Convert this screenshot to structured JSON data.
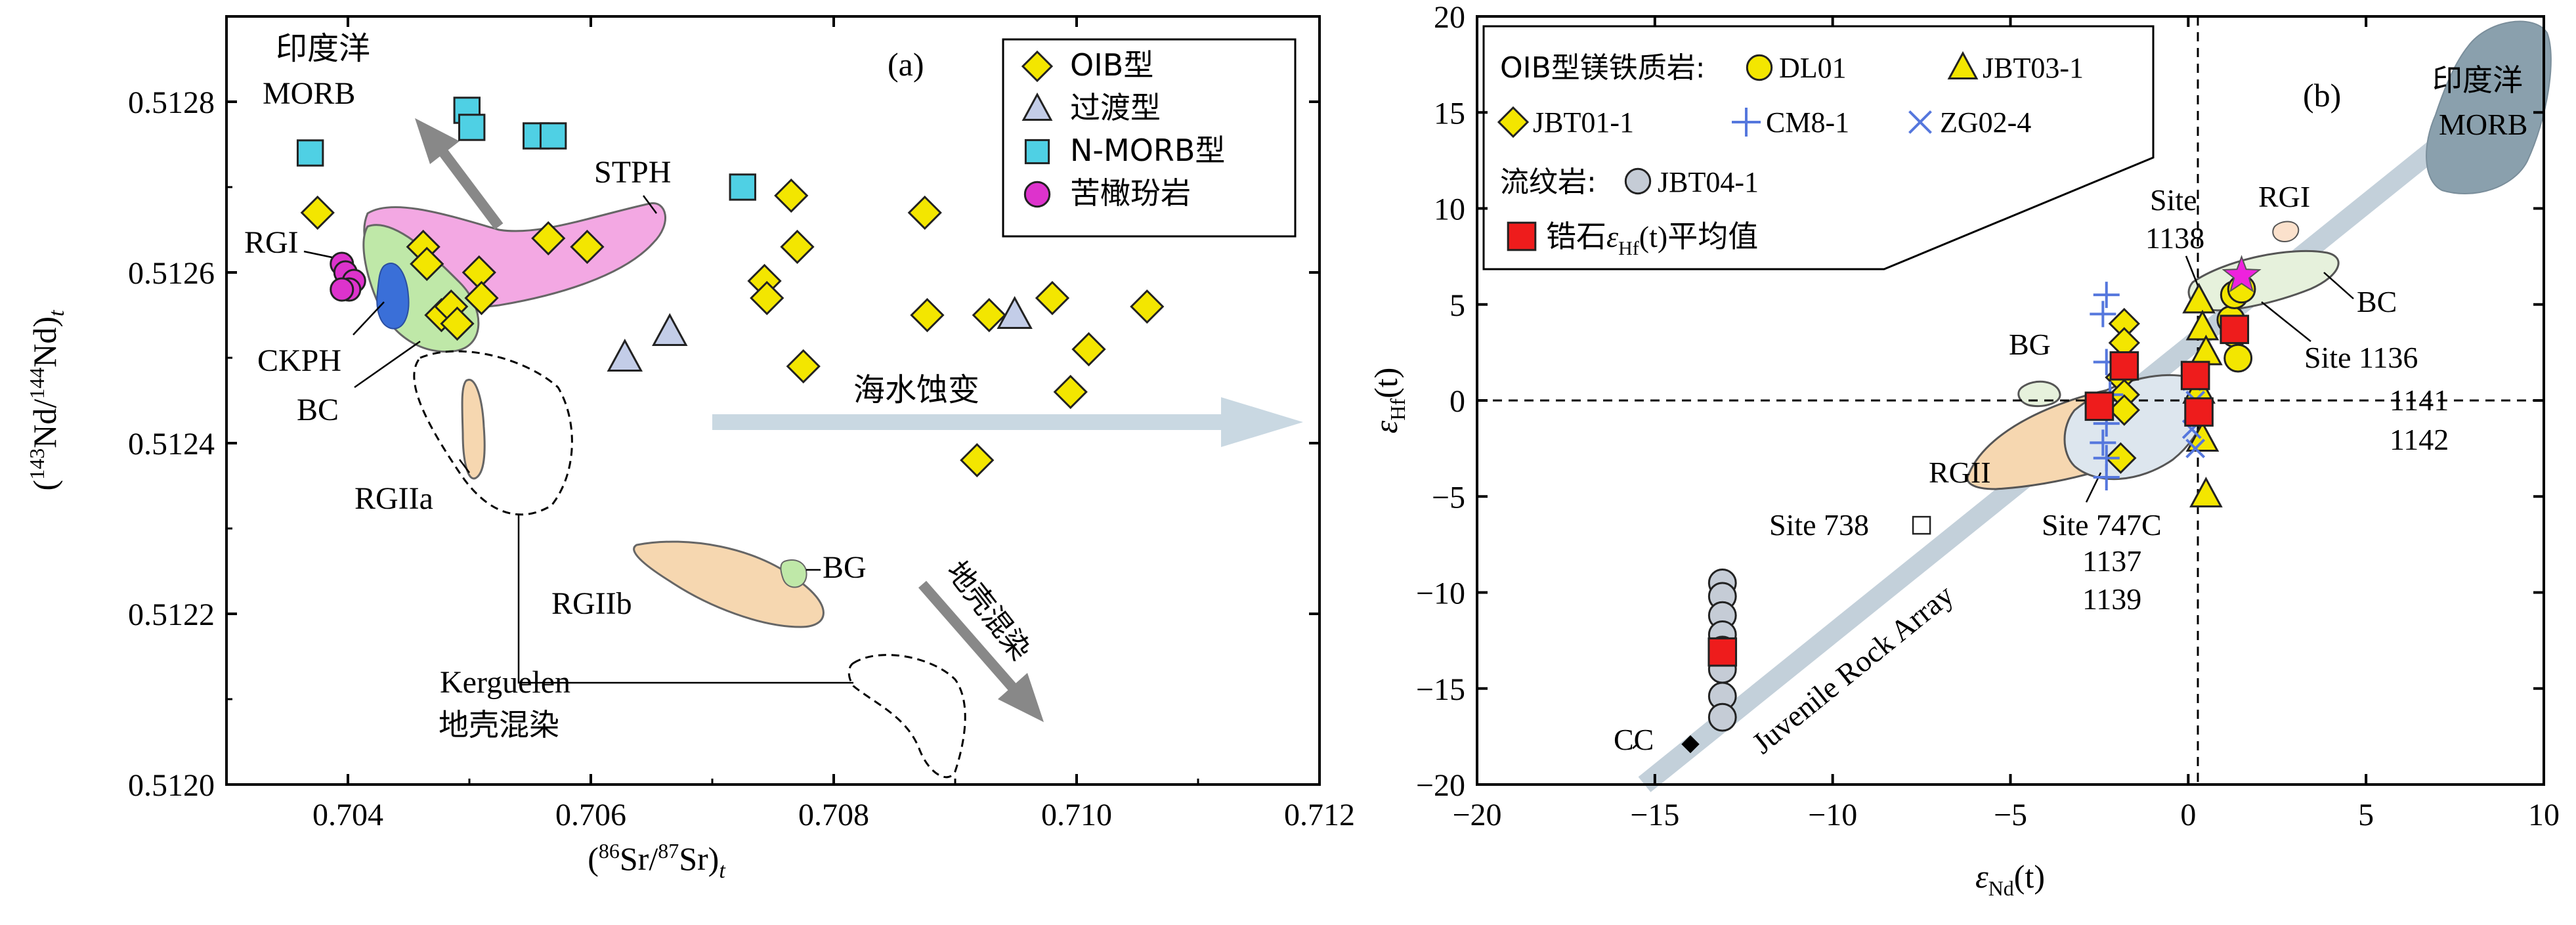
{
  "chart_data": [
    {
      "panel": "a",
      "type": "scatter",
      "panel_label": "(a)",
      "xlabel_parts": [
        "(",
        "86",
        "Sr/",
        "87",
        "Sr)",
        "t"
      ],
      "ylabel_parts": [
        "(",
        "143",
        "Nd/",
        "144",
        "Nd)",
        "t"
      ],
      "xlim": [
        0.703,
        0.712
      ],
      "ylim": [
        0.512,
        0.5129
      ],
      "xticks": [
        0.704,
        0.706,
        0.708,
        0.71,
        0.712
      ],
      "xtick_labels": [
        "0.704",
        "0.706",
        "0.708",
        "0.710",
        "0.712"
      ],
      "yticks": [
        0.512,
        0.5122,
        0.5124,
        0.5126,
        0.5128
      ],
      "ytick_labels": [
        "0.5120",
        "0.5122",
        "0.5124",
        "0.5126",
        "0.5128"
      ],
      "legend": [
        {
          "label": "OIB型",
          "marker": "diamond",
          "color": "#f3e600"
        },
        {
          "label": "过渡型",
          "marker": "triangle",
          "color": "#c3cde8"
        },
        {
          "label": "N-MORB型",
          "marker": "square",
          "color": "#4fd0e4"
        },
        {
          "label": "苦橄玢岩",
          "marker": "circle",
          "color": "#dd33cc"
        }
      ],
      "series": [
        {
          "name": "OIB型",
          "marker": "diamond",
          "color": "#f3e600",
          "x": [
            0.70375,
            0.70462,
            0.70465,
            0.70477,
            0.70485,
            0.7049,
            0.70508,
            0.7051,
            0.70565,
            0.70597,
            0.70743,
            0.70745,
            0.70765,
            0.7077,
            0.70775,
            0.70875,
            0.70877,
            0.70918,
            0.70928,
            0.7098,
            0.70995,
            0.7101,
            0.71058
          ],
          "y": [
            0.51267,
            0.51263,
            0.51261,
            0.51255,
            0.51256,
            0.51254,
            0.5126,
            0.51257,
            0.51264,
            0.51263,
            0.51259,
            0.51257,
            0.51269,
            0.51263,
            0.51249,
            0.51267,
            0.51255,
            0.51238,
            0.51255,
            0.51257,
            0.51246,
            0.51251,
            0.51256
          ]
        },
        {
          "name": "过渡型",
          "marker": "triangle",
          "color": "#c3cde8",
          "x": [
            0.70628,
            0.70665,
            0.70949
          ],
          "y": [
            0.5125,
            0.51253,
            0.51255
          ]
        },
        {
          "name": "N-MORB型",
          "marker": "square",
          "color": "#4fd0e4",
          "x": [
            0.70369,
            0.70498,
            0.70502,
            0.70555,
            0.70569,
            0.70725
          ],
          "y": [
            0.51274,
            0.51279,
            0.51277,
            0.51276,
            0.51276,
            0.5127
          ]
        },
        {
          "name": "苦橄玢岩",
          "marker": "circle",
          "color": "#dd33cc",
          "x": [
            0.70395,
            0.70398,
            0.70405,
            0.70401,
            0.70395
          ],
          "y": [
            0.51261,
            0.5126,
            0.51259,
            0.51258,
            0.51258
          ]
        }
      ],
      "annotations": [
        {
          "text": "印度洋",
          "zh": true
        },
        {
          "text": "MORB"
        },
        {
          "text": "STPH"
        },
        {
          "text": "RGI"
        },
        {
          "text": "CKPH"
        },
        {
          "text": "BC"
        },
        {
          "text": "RGIIa"
        },
        {
          "text": "RGIIb"
        },
        {
          "text": "BG"
        },
        {
          "text": "Kerguelen"
        },
        {
          "text": "地壳混染",
          "zh": true
        },
        {
          "text": "海水蚀变",
          "zh": true
        },
        {
          "text": "地壳混染",
          "zh": true
        }
      ]
    },
    {
      "panel": "b",
      "type": "scatter",
      "panel_label": "(b)",
      "xlabel_parts": [
        "ε",
        "Nd",
        "(t)"
      ],
      "ylabel_parts": [
        "ε",
        "Hf",
        "(t)"
      ],
      "xlim": [
        -20,
        10
      ],
      "ylim": [
        -20,
        20
      ],
      "xticks": [
        -20,
        -15,
        -10,
        -5,
        0,
        5,
        10
      ],
      "xtick_labels": [
        "−20",
        "−15",
        "−10",
        "−5",
        "0",
        "5",
        "10"
      ],
      "yticks": [
        -20,
        -15,
        -10,
        -5,
        0,
        5,
        10,
        15,
        20
      ],
      "ytick_labels": [
        "−20",
        "−15",
        "−10",
        "−5",
        "0",
        "5",
        "10",
        "15",
        "20"
      ],
      "legend": {
        "title_oib": "OIB型镁铁质岩:",
        "entries": [
          {
            "label": "DL01",
            "marker": "circle",
            "color": "#f3e600"
          },
          {
            "label": "JBT03-1",
            "marker": "triangle",
            "color": "#f3e600"
          },
          {
            "label": "JBT01-1",
            "marker": "diamond",
            "color": "#f3e600"
          },
          {
            "label": "CM8-1",
            "marker": "plus",
            "color": "#5577dd"
          },
          {
            "label": "ZG02-4",
            "marker": "cross",
            "color": "#5577dd"
          }
        ],
        "title_rhyolite": "流纹岩:",
        "rhyolite": {
          "label": "JBT04-1",
          "marker": "circle",
          "color": "#c5ccd6"
        },
        "zircon_prefix": "锆石",
        "zircon_eps": "ε",
        "zircon_sub": "Hf",
        "zircon_t": "(t)",
        "zircon_suffix": "平均值"
      },
      "series": [
        {
          "name": "DL01",
          "marker": "circle",
          "color": "#f3e600",
          "x": [
            1.2,
            1.3,
            1.4,
            1.3,
            1.5
          ],
          "y": [
            4.2,
            3.5,
            2.2,
            5.5,
            5.8
          ]
        },
        {
          "name": "JBT03-1",
          "marker": "triangle",
          "color": "#f3e600",
          "x": [
            0.3,
            0.4,
            0.5,
            0.3,
            0.4,
            0.5
          ],
          "y": [
            5.2,
            3.8,
            2.5,
            0.5,
            -2.0,
            -4.9
          ]
        },
        {
          "name": "JBT01-1",
          "marker": "diamond",
          "color": "#f3e600",
          "x": [
            -1.8,
            -1.8,
            -1.9,
            -1.8,
            -1.8,
            -1.9
          ],
          "y": [
            4.0,
            3.0,
            1.2,
            0.3,
            -0.5,
            -3.0
          ]
        },
        {
          "name": "CM8-1",
          "marker": "plus",
          "color": "#5577dd",
          "x": [
            -2.3,
            -2.4,
            -2.3,
            -2.2,
            -2.3,
            -2.4,
            -2.3,
            -2.3
          ],
          "y": [
            5.5,
            4.5,
            2.0,
            0.3,
            -1.2,
            -2.2,
            -3.0,
            -4.0
          ]
        },
        {
          "name": "ZG02-4",
          "marker": "cross",
          "color": "#5577dd",
          "x": [
            0.1,
            0.2,
            0.1,
            0.2
          ],
          "y": [
            1.0,
            0.0,
            -1.5,
            -2.5
          ]
        },
        {
          "name": "JBT04-1",
          "marker": "circle",
          "color": "#c5ccd6",
          "x": [
            -13.1,
            -13.1,
            -13.1,
            -13.1,
            -13.1,
            -13.1,
            -13.1,
            -13.1
          ],
          "y": [
            -9.5,
            -10.2,
            -11.2,
            -12.2,
            -13.0,
            -14.0,
            -15.4,
            -16.5
          ]
        },
        {
          "name": "锆石εHf(t)平均值",
          "marker": "square",
          "color": "#ee1c1c",
          "x": [
            -2.5,
            -1.8,
            0.2,
            0.3,
            1.3,
            -13.1
          ],
          "y": [
            -0.3,
            1.8,
            1.3,
            -0.6,
            3.7,
            -13.1
          ]
        },
        {
          "name": "CC",
          "marker": "small-diamond",
          "color": "#000000",
          "x": [
            -14.0
          ],
          "y": [
            -17.9
          ]
        },
        {
          "name": "Site 738",
          "marker": "open-square",
          "color": "#ffffff",
          "x": [
            -7.5
          ],
          "y": [
            -6.5
          ]
        },
        {
          "name": "star",
          "marker": "star",
          "color": "#ee22dd",
          "x": [
            1.5
          ],
          "y": [
            6.5
          ]
        }
      ],
      "annotations": [
        {
          "text": "Site"
        },
        {
          "text": "1138"
        },
        {
          "text": "RGI"
        },
        {
          "text": "BC"
        },
        {
          "text": "Site 1136"
        },
        {
          "text": "1141"
        },
        {
          "text": "1142"
        },
        {
          "text": "BG"
        },
        {
          "text": "RGII"
        },
        {
          "text": "Site 738"
        },
        {
          "text": "Site 747C"
        },
        {
          "text": "1137"
        },
        {
          "text": "1139"
        },
        {
          "text": "CC"
        },
        {
          "text": "Juvenile Rock Array"
        },
        {
          "text": "印度洋",
          "zh": true
        },
        {
          "text": "MORB"
        }
      ]
    }
  ]
}
